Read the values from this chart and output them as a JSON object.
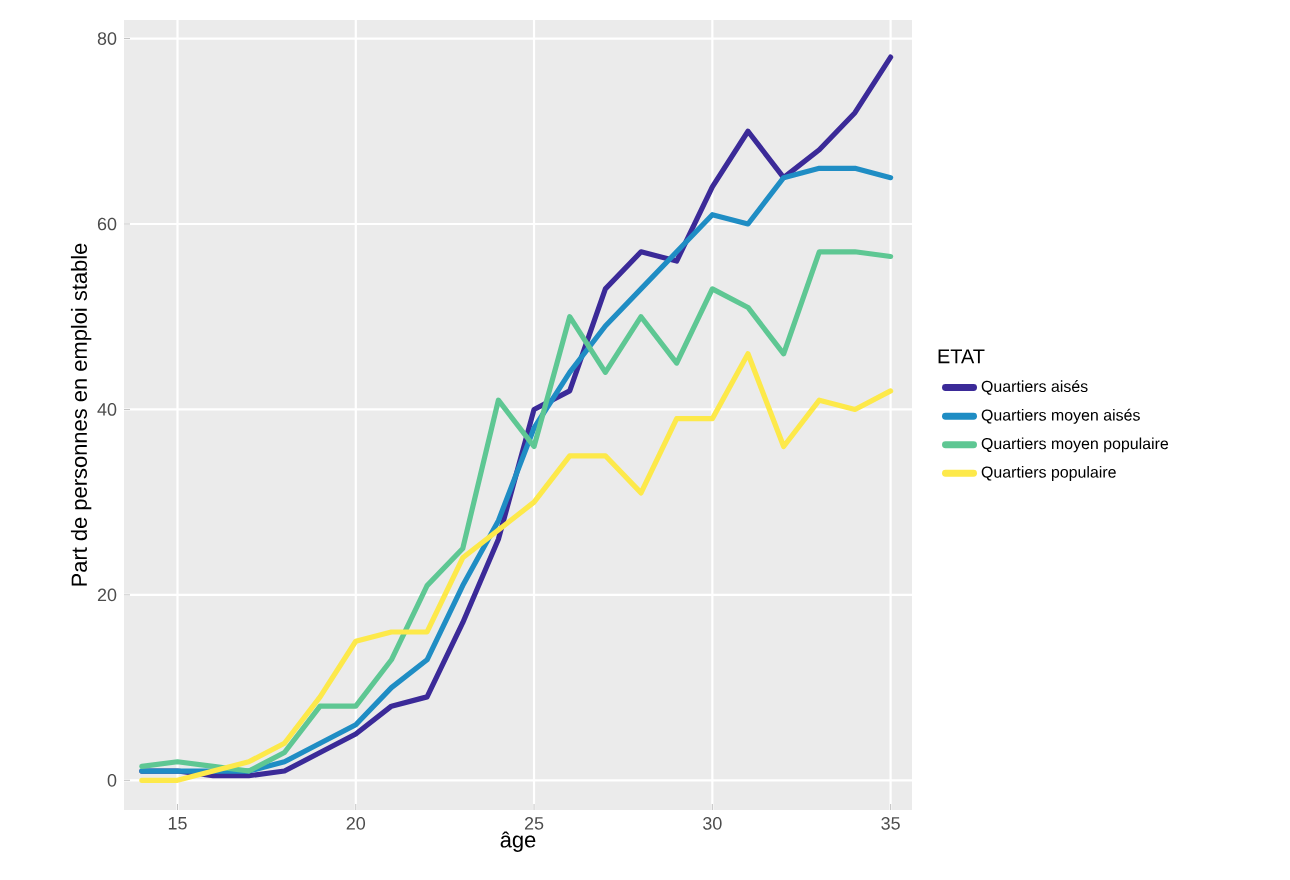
{
  "chart_data": {
    "type": "line",
    "xlabel": "âge",
    "ylabel": "Part de personnes en emploi stable",
    "legend_title": "ETAT",
    "legend": "right",
    "grid": true,
    "line_style": "solid",
    "marker": "none",
    "x": [
      14,
      15,
      16,
      17,
      18,
      19,
      20,
      21,
      22,
      23,
      24,
      25,
      26,
      27,
      28,
      29,
      30,
      31,
      32,
      33,
      34,
      35
    ],
    "xlim": [
      13.5,
      35.6
    ],
    "ylim": [
      -3.2,
      82
    ],
    "xticks": [
      15,
      20,
      25,
      30,
      35
    ],
    "yticks": [
      0,
      20,
      40,
      60,
      80
    ],
    "series": [
      {
        "name": "Quartiers aisés",
        "color": "#3b2a98",
        "values": [
          1,
          1,
          0.5,
          0.5,
          1,
          3,
          5,
          8,
          9,
          17,
          26,
          40,
          42,
          53,
          57,
          56,
          64,
          70,
          65,
          68,
          72,
          78
        ]
      },
      {
        "name": "Quartiers moyen aisés",
        "color": "#1f8dc4",
        "values": [
          1,
          1,
          1,
          1,
          2,
          4,
          6,
          10,
          13,
          21,
          28,
          38,
          44,
          49,
          53,
          57,
          61,
          60,
          65,
          66,
          66,
          65
        ]
      },
      {
        "name": "Quartiers moyen populaire",
        "color": "#5ec793",
        "values": [
          1.5,
          2,
          1.5,
          1,
          3,
          8,
          8,
          13,
          21,
          25,
          41,
          36,
          50,
          44,
          50,
          45,
          53,
          51,
          46,
          57,
          57,
          56.5
        ]
      },
      {
        "name": "Quartiers populaire",
        "color": "#fde94a",
        "values": [
          0,
          0,
          1,
          2,
          4,
          9,
          15,
          16,
          16,
          24,
          27,
          30,
          35,
          35,
          31,
          39,
          39,
          46,
          36,
          41,
          40,
          42
        ]
      }
    ]
  }
}
